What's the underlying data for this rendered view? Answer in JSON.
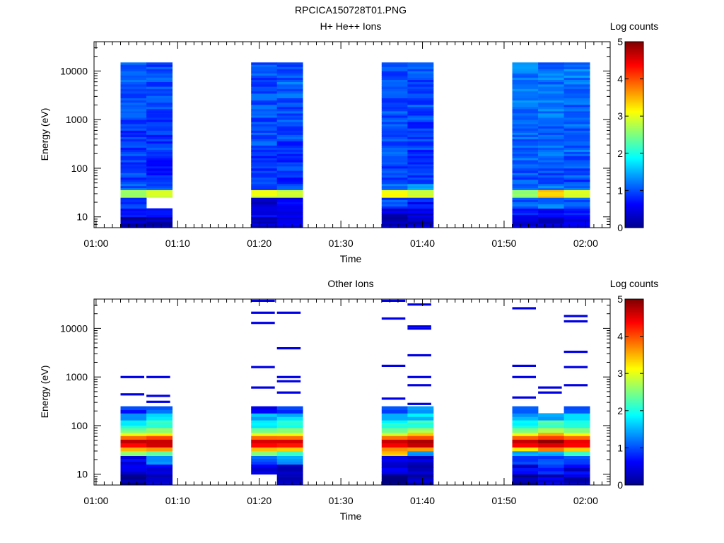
{
  "figure_title": "RPCICA150728T01.PNG",
  "chart_data": [
    {
      "type": "heatmap",
      "title": "H+ He++ Ions",
      "xlabel": "Time",
      "ylabel": "Energy (eV)",
      "y_scale": "log",
      "ylim": [
        6,
        40000
      ],
      "xlim": [
        "00:59:45",
        "02:03:00"
      ],
      "x_ticks": [
        "01:00",
        "01:10",
        "01:20",
        "01:30",
        "01:40",
        "01:50",
        "02:00"
      ],
      "y_ticks": [
        "10",
        "100",
        "1000",
        "10000"
      ],
      "colorbar": {
        "label": "Log counts",
        "min": 0,
        "max": 5,
        "ticks": [
          "0",
          "1",
          "2",
          "3",
          "4",
          "5"
        ],
        "colormap": "jet"
      },
      "time_columns": [
        {
          "start": "01:03:00",
          "end": "01:06:10"
        },
        {
          "start": "01:06:10",
          "end": "01:09:20"
        },
        {
          "start": "01:19:00",
          "end": "01:22:10"
        },
        {
          "start": "01:22:10",
          "end": "01:25:20"
        },
        {
          "start": "01:35:00",
          "end": "01:38:10"
        },
        {
          "start": "01:38:10",
          "end": "01:41:20"
        },
        {
          "start": "01:51:00",
          "end": "01:54:10"
        },
        {
          "start": "01:54:10",
          "end": "01:57:20"
        },
        {
          "start": "01:57:20",
          "end": "02:00:30"
        }
      ],
      "energy_bins_ev": [
        6,
        10,
        15,
        25,
        36,
        48,
        65,
        100,
        180,
        400,
        1000,
        2500,
        6000,
        15000,
        40000
      ],
      "log_counts": [
        [
          0.2,
          0.6,
          0.9,
          2.7,
          1.0,
          0.9,
          0.9,
          0.9,
          0.9,
          0.9,
          1.0,
          1.0,
          1.0
        ],
        [
          0.3,
          0.7,
          null,
          2.9,
          0.9,
          0.8,
          0.8,
          0.8,
          0.9,
          0.9,
          1.0,
          1.0,
          1.0
        ],
        [
          0.3,
          0.5,
          0.3,
          3.0,
          1.0,
          0.9,
          0.9,
          0.9,
          1.0,
          1.0,
          1.0,
          1.0,
          1.0
        ],
        [
          0.5,
          0.6,
          0.5,
          2.9,
          1.0,
          0.8,
          0.9,
          0.9,
          0.9,
          1.0,
          1.0,
          1.1,
          1.0
        ],
        [
          0.2,
          0.4,
          1.0,
          3.1,
          1.2,
          0.8,
          0.9,
          0.9,
          1.0,
          1.0,
          1.0,
          1.0,
          1.0
        ],
        [
          0.4,
          0.5,
          0.7,
          2.9,
          1.3,
          0.9,
          0.9,
          0.9,
          0.9,
          0.9,
          1.0,
          1.0,
          1.0
        ],
        [
          0.5,
          0.7,
          1.1,
          2.6,
          1.2,
          1.0,
          1.0,
          1.1,
          1.1,
          1.1,
          1.2,
          1.2,
          1.2
        ],
        [
          0.3,
          0.6,
          1.2,
          3.4,
          1.3,
          0.9,
          1.0,
          1.0,
          1.1,
          1.1,
          1.2,
          1.2,
          1.2
        ],
        [
          0.5,
          0.8,
          1.0,
          2.9,
          1.2,
          0.9,
          1.0,
          1.0,
          1.1,
          1.1,
          1.1,
          1.2,
          1.2
        ]
      ]
    },
    {
      "type": "heatmap",
      "title": "Other Ions",
      "xlabel": "Time",
      "ylabel": "Energy (eV)",
      "y_scale": "log",
      "ylim": [
        6,
        40000
      ],
      "xlim": [
        "00:59:45",
        "02:03:00"
      ],
      "x_ticks": [
        "01:00",
        "01:10",
        "01:20",
        "01:30",
        "01:40",
        "01:50",
        "02:00"
      ],
      "y_ticks": [
        "10",
        "100",
        "1000",
        "10000"
      ],
      "colorbar": {
        "label": "Log counts",
        "min": 0,
        "max": 5,
        "ticks": [
          "0",
          "1",
          "2",
          "3",
          "4",
          "5"
        ],
        "colormap": "jet"
      },
      "time_columns": [
        {
          "start": "01:03:00",
          "end": "01:06:10"
        },
        {
          "start": "01:06:10",
          "end": "01:09:20"
        },
        {
          "start": "01:19:00",
          "end": "01:22:10"
        },
        {
          "start": "01:22:10",
          "end": "01:25:20"
        },
        {
          "start": "01:35:00",
          "end": "01:38:10"
        },
        {
          "start": "01:38:10",
          "end": "01:41:20"
        },
        {
          "start": "01:51:00",
          "end": "01:54:10"
        },
        {
          "start": "01:54:10",
          "end": "01:57:20"
        },
        {
          "start": "01:57:20",
          "end": "02:00:30"
        }
      ],
      "energy_bins_ev": [
        6,
        10,
        16,
        24,
        30,
        36,
        44,
        52,
        62,
        72,
        90,
        130,
        180,
        250
      ],
      "log_counts": [
        [
          0.1,
          0.4,
          0.6,
          2.6,
          3.5,
          4.4,
          4.6,
          3.9,
          3.0,
          2.4,
          1.9,
          1.5,
          0.8
        ],
        [
          0.3,
          0.5,
          1.2,
          2.4,
          3.6,
          4.5,
          4.7,
          4.0,
          3.2,
          2.6,
          2.1,
          1.7,
          1.2
        ],
        [
          null,
          0.4,
          1.0,
          2.5,
          3.4,
          4.4,
          4.6,
          3.8,
          3.0,
          2.4,
          1.9,
          1.5,
          0.6
        ],
        [
          0.4,
          0.3,
          1.3,
          2.2,
          3.3,
          4.3,
          4.5,
          3.8,
          3.1,
          2.5,
          2.0,
          1.6,
          1.0
        ],
        [
          0.1,
          0.4,
          0.5,
          3.4,
          3.6,
          4.5,
          4.7,
          3.9,
          3.0,
          2.4,
          1.9,
          1.5,
          1.0
        ],
        [
          0.3,
          0.3,
          0.5,
          1.4,
          3.7,
          4.6,
          4.8,
          4.0,
          3.3,
          2.7,
          2.1,
          1.7,
          1.3
        ],
        [
          0.2,
          0.5,
          0.8,
          1.6,
          3.3,
          4.4,
          4.6,
          3.8,
          3.0,
          2.4,
          1.9,
          1.5,
          0.9
        ],
        [
          0.4,
          0.7,
          1.0,
          1.5,
          3.8,
          4.6,
          4.8,
          4.1,
          3.5,
          2.8,
          2.2,
          1.5,
          null
        ],
        [
          0.3,
          0.5,
          0.9,
          2.2,
          3.4,
          4.3,
          4.5,
          3.8,
          3.1,
          2.5,
          2.0,
          1.6,
          1.1
        ]
      ],
      "sparse_high_energy_counts": [
        {
          "column": 0,
          "energies_ev": [
            440,
            1000
          ],
          "log_counts": 0.5
        },
        {
          "column": 1,
          "energies_ev": [
            310,
            410,
            1000
          ],
          "log_counts": 0.5
        },
        {
          "column": 2,
          "energies_ev": [
            610,
            1600,
            13000,
            21000,
            37000
          ],
          "log_counts": 0.5
        },
        {
          "column": 3,
          "energies_ev": [
            480,
            820,
            1000,
            3900,
            21000
          ],
          "log_counts": 0.5
        },
        {
          "column": 4,
          "energies_ev": [
            360,
            1700,
            16000,
            37000
          ],
          "log_counts": 0.5
        },
        {
          "column": 5,
          "energies_ev": [
            280,
            680,
            1000,
            2800,
            9900,
            11000,
            31000
          ],
          "log_counts": 0.5
        },
        {
          "column": 6,
          "energies_ev": [
            380,
            1000,
            1700,
            26000
          ],
          "log_counts": 0.5
        },
        {
          "column": 7,
          "energies_ev": [
            480,
            610
          ],
          "log_counts": 0.5
        },
        {
          "column": 8,
          "energies_ev": [
            680,
            1600,
            3300,
            14000,
            18000
          ],
          "log_counts": 0.5
        }
      ]
    }
  ]
}
